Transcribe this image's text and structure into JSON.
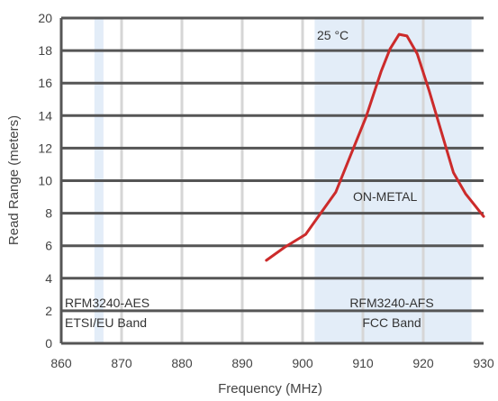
{
  "chart_data": {
    "type": "line",
    "title": "",
    "xlabel": "Frequency (MHz)",
    "ylabel": "Read Range (meters)",
    "xlim": [
      860,
      930
    ],
    "ylim": [
      0,
      20
    ],
    "x_ticks": [
      "860",
      "870",
      "880",
      "890",
      "900",
      "910",
      "920",
      "930"
    ],
    "y_ticks": [
      "0",
      "2",
      "4",
      "6",
      "8",
      "10",
      "12",
      "14",
      "16",
      "18",
      "20"
    ],
    "horizontal_grid": true,
    "vertical_grid": true,
    "colors": {
      "line": "#cc2b2b",
      "band_fill": "#e3edf8",
      "h_grid": "#555555",
      "v_grid": "#d6d6d6",
      "axis_text": "#444444"
    },
    "bands": [
      {
        "x_start": 865.5,
        "x_end": 867,
        "label_line1": "RFM3240-AES",
        "label_line2": "ETSI/EU Band"
      },
      {
        "x_start": 902,
        "x_end": 928,
        "label_line1": "RFM3240-AFS",
        "label_line2": "FCC Band"
      }
    ],
    "annotations": {
      "temperature": "25 °C",
      "mounting": "ON-METAL"
    },
    "series": [
      {
        "x": [
          894,
          897,
          900.5,
          903,
          905.5,
          908,
          910.5,
          913,
          914.5,
          916,
          917.3,
          919,
          921,
          923,
          925,
          927,
          928.5,
          930
        ],
        "y": [
          5.1,
          5.9,
          6.7,
          8.0,
          9.3,
          11.6,
          13.9,
          16.7,
          18.1,
          19.0,
          18.9,
          17.8,
          15.5,
          13.0,
          10.5,
          9.2,
          8.5,
          7.8
        ]
      }
    ]
  }
}
